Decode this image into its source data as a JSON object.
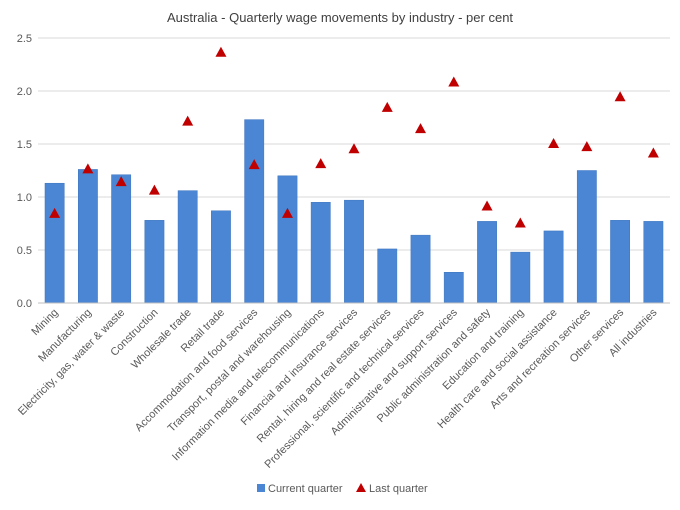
{
  "chart_data": {
    "type": "bar",
    "title": "Australia - Quarterly wage movements by industry - per cent",
    "xlabel": "",
    "ylabel": "",
    "ylim": [
      0,
      2.5
    ],
    "yticks": [
      "0.0",
      "0.5",
      "1.0",
      "1.5",
      "2.0",
      "2.5"
    ],
    "grid": true,
    "legend_position": "bottom",
    "categories": [
      "Mining",
      "Manufacturing",
      "Electricity, gas, water & waste",
      "Construction",
      "Wholesale trade",
      "Retail trade",
      "Accommodation and food services",
      "Transport, postal and warehousing",
      "Information media and telecommunications",
      "Financial and insurance services",
      "Rental, hiring and real estate services",
      "Professional, scientific and technical services",
      "Administrative and support services",
      "Public administration and safety",
      "Education and training",
      "Health care and social assistance",
      "Arts and recreation services",
      "Other services",
      "All industries"
    ],
    "series": [
      {
        "name": "Current quarter",
        "type": "bar",
        "color": "#4a86d4",
        "values": [
          1.13,
          1.26,
          1.21,
          0.78,
          1.06,
          0.87,
          1.73,
          1.2,
          0.95,
          0.97,
          0.51,
          0.64,
          0.29,
          0.77,
          0.48,
          0.68,
          1.25,
          0.78,
          0.77
        ]
      },
      {
        "name": "Last quarter",
        "type": "scatter",
        "marker": "triangle",
        "color": "#c00000",
        "values": [
          0.85,
          1.27,
          1.15,
          1.07,
          1.72,
          2.37,
          1.31,
          0.85,
          1.32,
          1.46,
          1.85,
          1.65,
          2.09,
          0.92,
          0.76,
          1.51,
          1.48,
          1.95,
          1.42
        ]
      }
    ]
  }
}
